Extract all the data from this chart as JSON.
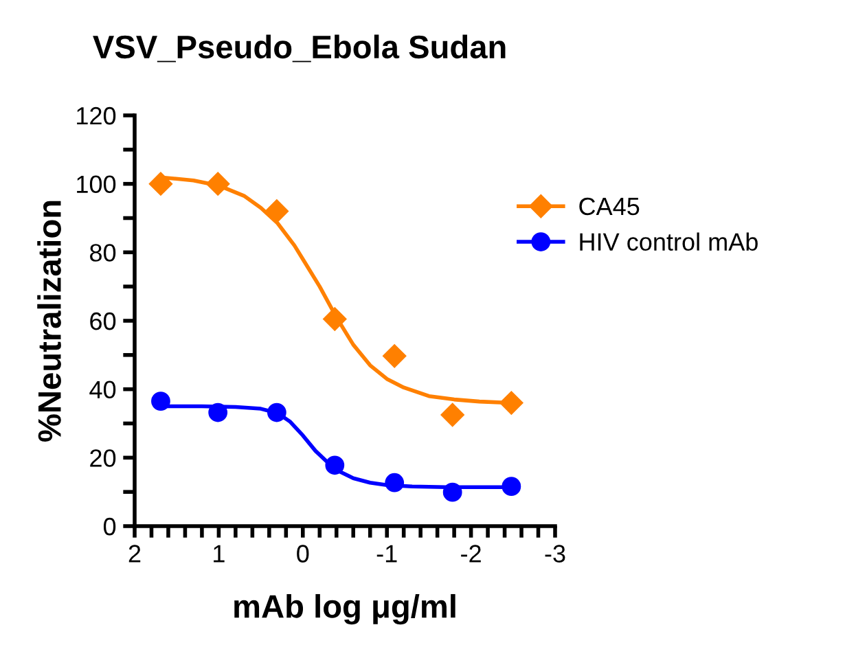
{
  "chart_data": {
    "type": "line",
    "title": "VSV_Pseudo_Ebola Sudan",
    "xlabel": "mAb log μg/ml",
    "ylabel": "%Neutralization",
    "xlim": [
      2,
      -3
    ],
    "ylim": [
      0,
      120
    ],
    "xticks": [
      2,
      {
        "value": 1.8,
        "label": null
      },
      {
        "value": 1.6,
        "label": null
      },
      {
        "value": 1.4,
        "label": null
      },
      {
        "value": 1.2,
        "label": null
      },
      1,
      {
        "value": 0.8,
        "label": null
      },
      {
        "value": 0.6,
        "label": null
      },
      {
        "value": 0.4,
        "label": null
      },
      {
        "value": 0.2,
        "label": null
      },
      0,
      {
        "value": -0.2,
        "label": null
      },
      {
        "value": -0.4,
        "label": null
      },
      {
        "value": -0.6,
        "label": null
      },
      {
        "value": -0.8,
        "label": null
      },
      -1,
      {
        "value": -1.2,
        "label": null
      },
      {
        "value": -1.4,
        "label": null
      },
      {
        "value": -1.6,
        "label": null
      },
      {
        "value": -1.8,
        "label": null
      },
      -2,
      {
        "value": -2.2,
        "label": null
      },
      {
        "value": -2.4,
        "label": null
      },
      {
        "value": -2.6,
        "label": null
      },
      {
        "value": -2.8,
        "label": null
      },
      -3
    ],
    "yticks": [
      0,
      {
        "value": 10,
        "label": null
      },
      20,
      {
        "value": 30,
        "label": null
      },
      40,
      {
        "value": 50,
        "label": null
      },
      60,
      {
        "value": 70,
        "label": null
      },
      80,
      {
        "value": 90,
        "label": null
      },
      100,
      {
        "value": 110,
        "label": null
      },
      120
    ],
    "grid": false,
    "legend": "right",
    "series": [
      {
        "name": "CA45",
        "type": "scatter",
        "marker": "diamond",
        "color": "#ff8000",
        "x": [
          1.69,
          1.01,
          0.31,
          -0.38,
          -1.09,
          -1.78,
          -2.48
        ],
        "values": [
          100,
          100,
          92,
          60.5,
          49.7,
          32.5,
          36
        ]
      },
      {
        "name": "HIV control mAb",
        "type": "scatter",
        "marker": "circle",
        "color": "#0000ff",
        "x": [
          1.69,
          1.01,
          0.31,
          -0.38,
          -1.09,
          -1.78,
          -2.48
        ],
        "values": [
          36.5,
          33.2,
          33.2,
          17.8,
          12.7,
          9.9,
          11.6
        ]
      },
      {
        "color": "#ff8000",
        "x": [
          1.69,
          1.3,
          1.0,
          0.7,
          0.5,
          0.3,
          0.1,
          0,
          -0.2,
          -0.4,
          -0.6,
          -0.8,
          -1.0,
          -1.2,
          -1.5,
          -1.8,
          -2.1,
          -2.48
        ],
        "values": [
          101.9,
          101,
          99.5,
          96.5,
          93,
          88.5,
          82,
          78,
          70,
          61,
          53,
          47,
          43,
          40.5,
          38,
          37,
          36.4,
          36
        ]
      },
      {
        "color": "#0000ff",
        "x": [
          1.69,
          1.2,
          0.8,
          0.5,
          0.3,
          0.15,
          0,
          -0.15,
          -0.3,
          -0.45,
          -0.6,
          -0.8,
          -1.0,
          -1.3,
          -1.7,
          -2.1,
          -2.48
        ],
        "values": [
          35,
          35,
          34.8,
          34.3,
          33,
          30.5,
          26.5,
          22,
          18.5,
          15.8,
          14,
          12.7,
          12,
          11.6,
          11.4,
          11.4,
          11.4
        ]
      }
    ]
  }
}
